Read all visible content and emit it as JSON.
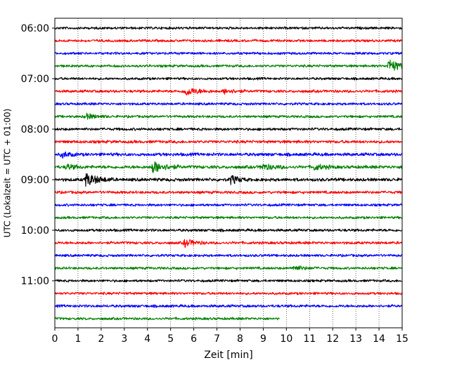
{
  "chart_data": {
    "type": "line",
    "title": "",
    "xlabel": "Zeit  [min]",
    "ylabel": "UTC (Lokalzeit = UTC + 01:00)",
    "xlim": [
      0,
      15
    ],
    "x_ticks": [
      "0",
      "1",
      "2",
      "3",
      "4",
      "5",
      "6",
      "7",
      "8",
      "9",
      "10",
      "11",
      "12",
      "13",
      "14",
      "15"
    ],
    "y_ticks": [
      "06:00",
      "07:00",
      "08:00",
      "09:00",
      "10:00",
      "11:00"
    ],
    "grid": "vertical dotted lines at each minute",
    "colors": [
      "#000000",
      "#ff0000",
      "#0000ff",
      "#008000"
    ],
    "traces": [
      {
        "start": "06:00",
        "color": "#000000",
        "end_min": 15,
        "amplitude": 2.0,
        "events": []
      },
      {
        "start": "06:15",
        "color": "#ff0000",
        "end_min": 15,
        "amplitude": 2.0,
        "events": []
      },
      {
        "start": "06:30",
        "color": "#0000ff",
        "end_min": 15,
        "amplitude": 2.0,
        "events": []
      },
      {
        "start": "06:45",
        "color": "#008000",
        "end_min": 15,
        "amplitude": 2.0,
        "events": [
          {
            "t": 14.4,
            "amp": 9,
            "dur": 0.5
          }
        ]
      },
      {
        "start": "07:00",
        "color": "#000000",
        "end_min": 15,
        "amplitude": 2.0,
        "events": []
      },
      {
        "start": "07:15",
        "color": "#ff0000",
        "end_min": 15,
        "amplitude": 2.2,
        "events": [
          {
            "t": 5.6,
            "amp": 6,
            "dur": 0.5
          },
          {
            "t": 7.3,
            "amp": 3.5,
            "dur": 0.4
          }
        ]
      },
      {
        "start": "07:30",
        "color": "#0000ff",
        "end_min": 15,
        "amplitude": 2.0,
        "events": []
      },
      {
        "start": "07:45",
        "color": "#008000",
        "end_min": 15,
        "amplitude": 2.0,
        "events": [
          {
            "t": 1.3,
            "amp": 4,
            "dur": 0.4
          }
        ]
      },
      {
        "start": "08:00",
        "color": "#000000",
        "end_min": 15,
        "amplitude": 2.2,
        "events": []
      },
      {
        "start": "08:15",
        "color": "#ff0000",
        "end_min": 15,
        "amplitude": 2.4,
        "events": []
      },
      {
        "start": "08:30",
        "color": "#0000ff",
        "end_min": 15,
        "amplitude": 2.6,
        "events": [
          {
            "t": 0.3,
            "amp": 4,
            "dur": 0.3
          }
        ]
      },
      {
        "start": "08:45",
        "color": "#008000",
        "end_min": 15,
        "amplitude": 2.6,
        "events": [
          {
            "t": 0.5,
            "amp": 4,
            "dur": 0.3
          },
          {
            "t": 4.2,
            "amp": 8,
            "dur": 0.5
          },
          {
            "t": 8.9,
            "amp": 4,
            "dur": 0.5
          },
          {
            "t": 11.2,
            "amp": 3.5,
            "dur": 0.4
          }
        ]
      },
      {
        "start": "09:00",
        "color": "#000000",
        "end_min": 15,
        "amplitude": 2.6,
        "events": [
          {
            "t": 1.3,
            "amp": 9,
            "dur": 0.5
          },
          {
            "t": 7.6,
            "amp": 6,
            "dur": 0.3
          }
        ]
      },
      {
        "start": "09:15",
        "color": "#ff0000",
        "end_min": 15,
        "amplitude": 2.2,
        "events": []
      },
      {
        "start": "09:30",
        "color": "#0000ff",
        "end_min": 15,
        "amplitude": 2.0,
        "events": []
      },
      {
        "start": "09:45",
        "color": "#008000",
        "end_min": 15,
        "amplitude": 2.0,
        "events": []
      },
      {
        "start": "10:00",
        "color": "#000000",
        "end_min": 15,
        "amplitude": 2.2,
        "events": []
      },
      {
        "start": "10:15",
        "color": "#ff0000",
        "end_min": 15,
        "amplitude": 2.2,
        "events": [
          {
            "t": 5.6,
            "amp": 5,
            "dur": 0.4
          }
        ]
      },
      {
        "start": "10:30",
        "color": "#0000ff",
        "end_min": 15,
        "amplitude": 2.0,
        "events": []
      },
      {
        "start": "10:45",
        "color": "#008000",
        "end_min": 15,
        "amplitude": 2.0,
        "events": [
          {
            "t": 10.3,
            "amp": 3.5,
            "dur": 0.4
          }
        ]
      },
      {
        "start": "11:00",
        "color": "#000000",
        "end_min": 15,
        "amplitude": 2.0,
        "events": []
      },
      {
        "start": "11:15",
        "color": "#ff0000",
        "end_min": 15,
        "amplitude": 2.0,
        "events": []
      },
      {
        "start": "11:30",
        "color": "#0000ff",
        "end_min": 15,
        "amplitude": 2.2,
        "events": []
      },
      {
        "start": "11:45",
        "color": "#008000",
        "end_min": 9.7,
        "amplitude": 2.0,
        "events": []
      }
    ]
  }
}
